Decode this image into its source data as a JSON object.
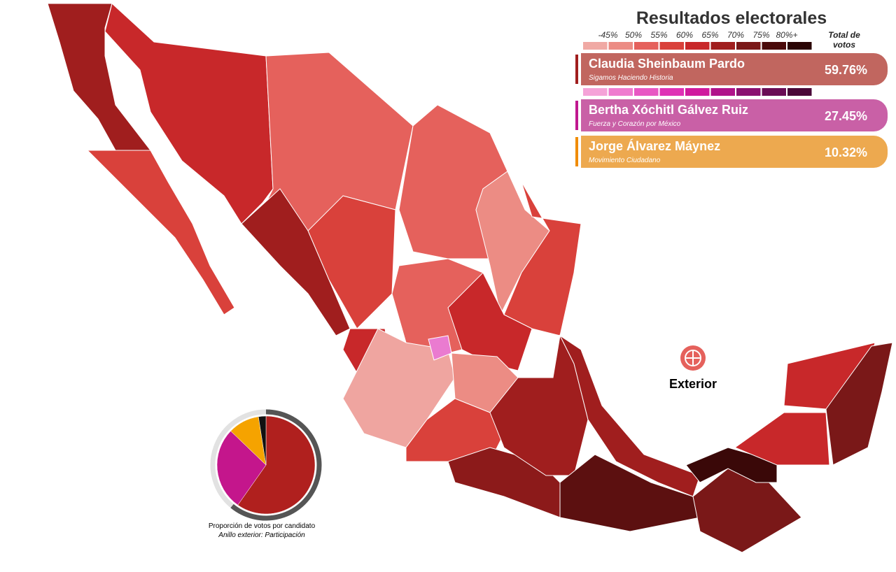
{
  "title": "Resultados electorales",
  "legend": {
    "labels": [
      "-45%",
      "50%",
      "55%",
      "60%",
      "65%",
      "70%",
      "75%",
      "80%+"
    ],
    "header": "Total de votos",
    "scales": [
      [
        "#f0a9a4",
        "#ec8c84",
        "#e5615c",
        "#d9413b",
        "#c8282a",
        "#a01e1e",
        "#7a1818",
        "#4a0a0a",
        "#2a0505"
      ],
      [
        "#f5a3d8",
        "#ef7bcf",
        "#e857c3",
        "#df32b5",
        "#d01a9e",
        "#b0138a",
        "#8a1070",
        "#6a0c55",
        "#4a0838"
      ]
    ]
  },
  "candidates": [
    {
      "name": "Claudia Sheinbaum Pardo",
      "coalition": "Sigamos Haciendo Historia",
      "result": "59.76%",
      "color": "#c1665f",
      "accent": "#a01e1e"
    },
    {
      "name": "Bertha Xóchitl Gálvez Ruiz",
      "coalition": "Fuerza y Corazón por México",
      "result": "27.45%",
      "color": "#c960a6",
      "accent": "#c0188f"
    },
    {
      "name": "Jorge Álvarez Máynez",
      "coalition": "Movimiento Ciudadano",
      "result": "10.32%",
      "color": "#eda94f",
      "accent": "#f08c00"
    }
  ],
  "abroad": "Exterior",
  "chart_data": {
    "type": "pie",
    "values": [
      59.76,
      27.45,
      10.32,
      2.47
    ],
    "colors": [
      "#b0201e",
      "#c4168c",
      "#f5a300",
      "#111111"
    ],
    "ring": {
      "value": 61,
      "colors": [
        "#555555",
        "#e2e2e2"
      ]
    },
    "caption": "Proporción de votos por candidato",
    "subcaption": "Anillo exterior: Participación"
  }
}
